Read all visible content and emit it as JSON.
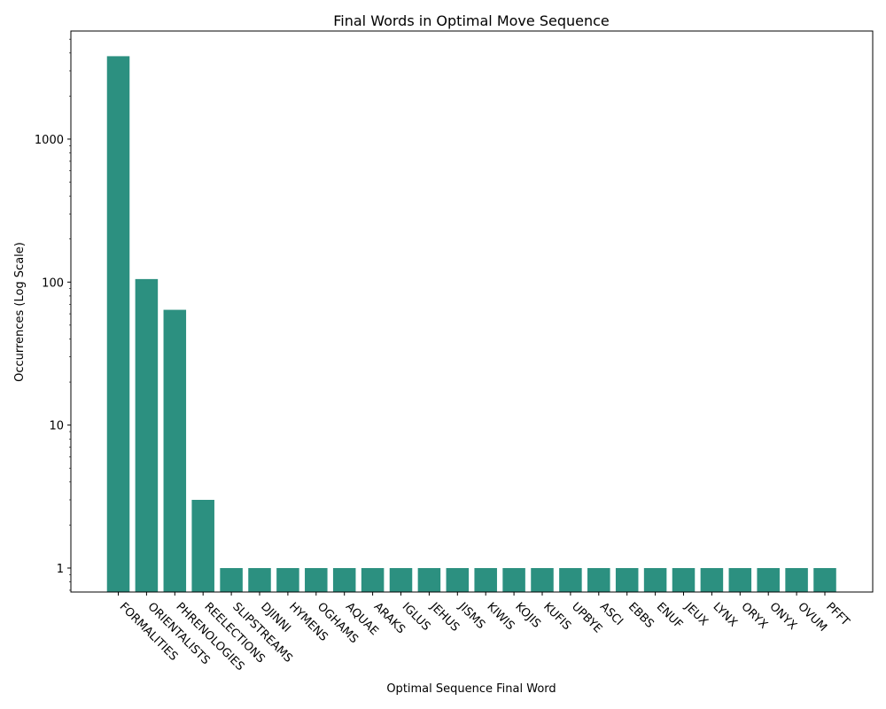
{
  "chart_data": {
    "type": "bar",
    "title": "Final Words in Optimal Move Sequence",
    "xlabel": "Optimal Sequence Final Word",
    "ylabel": "Occurrences (Log Scale)",
    "yscale": "log",
    "ylim": [
      0.68,
      5700
    ],
    "yticks": [
      {
        "value": 1,
        "label": "1"
      },
      {
        "value": 10,
        "label": "10"
      },
      {
        "value": 100,
        "label": "100"
      },
      {
        "value": 1000,
        "label": "1000"
      }
    ],
    "bar_color": "#2c9080",
    "grid": false,
    "legend": "none",
    "categories": [
      "FORMALITIES",
      "ORIENTALISTS",
      "PHRENOLOGIES",
      "REELECTIONS",
      "SLIPSTREAMS",
      "DJINNI",
      "HYMENS",
      "OGHAMS",
      "AQUAE",
      "ARAKS",
      "IGLUS",
      "JEHUS",
      "JISMS",
      "KIWIS",
      "KOJIS",
      "KUFIS",
      "UPBYE",
      "ASCI",
      "EBBS",
      "ENUF",
      "JEUX",
      "LYNX",
      "ORYX",
      "ONYX",
      "OVUM",
      "PFFT"
    ],
    "values": [
      3800,
      105,
      64,
      3,
      1,
      1,
      1,
      1,
      1,
      1,
      1,
      1,
      1,
      1,
      1,
      1,
      1,
      1,
      1,
      1,
      1,
      1,
      1,
      1,
      1,
      1
    ]
  }
}
